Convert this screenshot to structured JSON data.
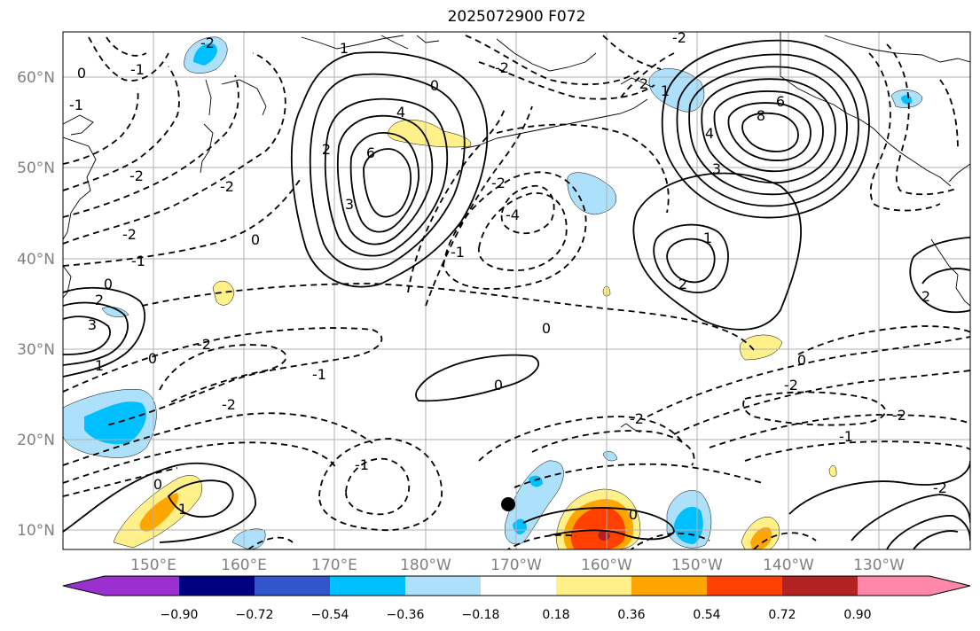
{
  "title": "2025072900 F072",
  "lat_labels": [
    "60°N",
    "50°N",
    "40°N",
    "30°N",
    "20°N",
    "10°N"
  ],
  "lon_labels": [
    "150°E",
    "160°E",
    "170°E",
    "180°W",
    "170°W",
    "160°W",
    "150°W",
    "140°W",
    "130°W"
  ],
  "colorbar": {
    "colors": [
      "#9a30d0",
      "#000080",
      "#3355cc",
      "#00bfff",
      "#ade0fa",
      "#ffffff",
      "#fff08a",
      "#ffa500",
      "#ff4000",
      "#b22222",
      "#ff88aa"
    ],
    "tick_labels": [
      "−0.90",
      "−0.72",
      "−0.54",
      "−0.36",
      "−0.18",
      "0.18",
      "0.36",
      "0.54",
      "0.72",
      "0.90"
    ]
  },
  "contour_labels": {
    "c1": "-2",
    "c2": "-1",
    "c3": "0",
    "c4": "1",
    "c5": "4",
    "c6": "6",
    "c7": "3",
    "c8": "2",
    "c9": "0",
    "c10": "-2",
    "c11": "-2",
    "c12": "1",
    "c13": "2",
    "c14": "6",
    "c15": "8",
    "c16": "4",
    "c17": "3",
    "c18": "-1",
    "c19": "-2",
    "c20": "-2",
    "c21": "-4",
    "c22": "-2",
    "c23": "-1",
    "c24": "0",
    "c25": "0",
    "c26": "-2",
    "c27": "-1",
    "c28": "0",
    "c29": "-2",
    "c30": "-1",
    "c31": "2",
    "c32": "0",
    "c33": "1",
    "c34": "-1",
    "c35": "-2",
    "c36": "-2",
    "c37": "0",
    "c38": "-2",
    "c39": "1",
    "c40": "0",
    "c41": "-2",
    "c42": "0",
    "c43": "1",
    "c44": "0",
    "c45": "2",
    "c46": "-1",
    "c47": "2",
    "c48": "-2",
    "c49": "3"
  }
}
